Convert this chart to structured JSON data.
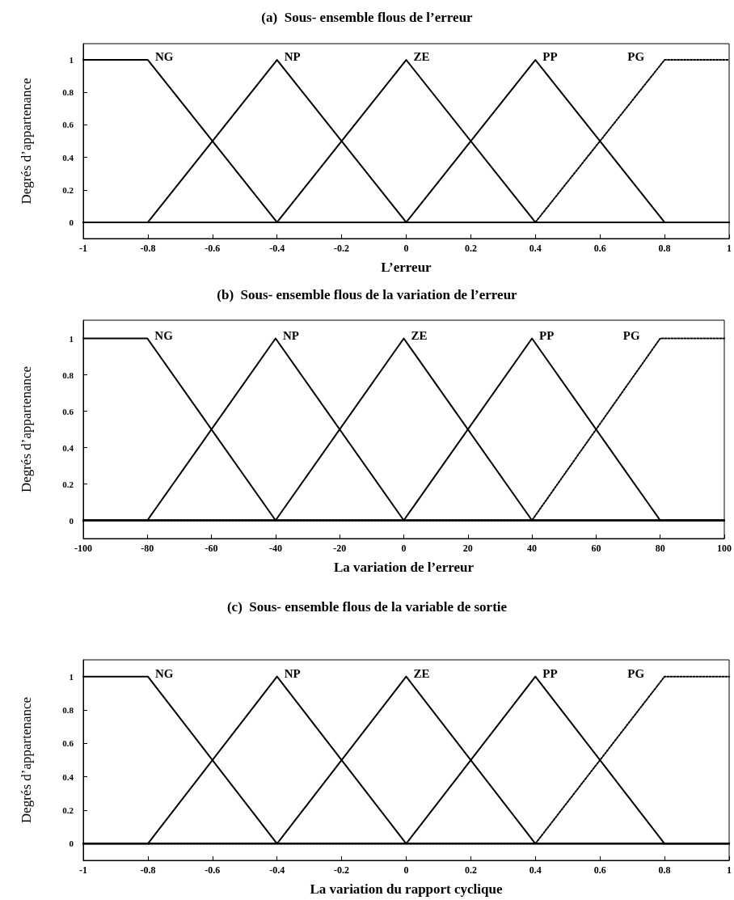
{
  "chart_data": [
    {
      "type": "line",
      "title": "(a)  Sous- ensemble flous de l’erreur",
      "xlabel": "L’erreur",
      "ylabel": "Degrés d’appartenance",
      "xlim": [
        -1,
        1
      ],
      "xticks": [
        -1,
        -0.8,
        -0.6,
        -0.4,
        -0.2,
        0,
        0.2,
        0.4,
        0.6,
        0.8,
        1
      ],
      "ylim": [
        -0.1,
        1.1
      ],
      "yticks": [
        0,
        0.2,
        0.4,
        0.6,
        0.8,
        1
      ],
      "grid": false,
      "legend": false,
      "marker": "none",
      "series": [
        {
          "name": "NG",
          "color": "#000000",
          "line_style": "solid",
          "x": [
            -1,
            -0.8,
            -0.4,
            1
          ],
          "values": [
            1,
            1,
            0,
            0
          ]
        },
        {
          "name": "NP",
          "color": "#000000",
          "line_style": "solid",
          "x": [
            -1,
            -0.8,
            -0.4,
            0,
            1
          ],
          "values": [
            0,
            0,
            1,
            0,
            0
          ]
        },
        {
          "name": "ZE",
          "color": "#000000",
          "line_style": "solid",
          "x": [
            -1,
            -0.4,
            0,
            0.4,
            1
          ],
          "values": [
            0,
            0,
            1,
            0,
            0
          ]
        },
        {
          "name": "PP",
          "color": "#000000",
          "line_style": "solid",
          "x": [
            -1,
            0,
            0.4,
            0.8,
            1
          ],
          "values": [
            0,
            0,
            1,
            0,
            0
          ]
        },
        {
          "name": "PG",
          "color": "#000000",
          "line_style": "dotted",
          "x": [
            -1,
            0.4,
            0.8,
            1
          ],
          "values": [
            0,
            0,
            1,
            1
          ]
        }
      ]
    },
    {
      "type": "line",
      "title": "(b)  Sous- ensemble flous de la variation de l’erreur",
      "xlabel": "La variation de l’erreur",
      "ylabel": "Degrés d’appartenance",
      "xlim": [
        -100,
        100
      ],
      "xticks": [
        -100,
        -80,
        -60,
        -40,
        -20,
        0,
        20,
        40,
        60,
        80,
        100
      ],
      "ylim": [
        -0.1,
        1.1
      ],
      "yticks": [
        0,
        0.2,
        0.4,
        0.6,
        0.8,
        1
      ],
      "grid": false,
      "legend": false,
      "marker": "none",
      "series": [
        {
          "name": "NG",
          "color": "#000000",
          "line_style": "solid",
          "x": [
            -100,
            -80,
            -40,
            100
          ],
          "values": [
            1,
            1,
            0,
            0
          ]
        },
        {
          "name": "NP",
          "color": "#000000",
          "line_style": "solid",
          "x": [
            -100,
            -80,
            -40,
            0,
            100
          ],
          "values": [
            0,
            0,
            1,
            0,
            0
          ]
        },
        {
          "name": "ZE",
          "color": "#000000",
          "line_style": "solid",
          "x": [
            -100,
            -40,
            0,
            40,
            100
          ],
          "values": [
            0,
            0,
            1,
            0,
            0
          ]
        },
        {
          "name": "PP",
          "color": "#000000",
          "line_style": "solid",
          "x": [
            -100,
            0,
            40,
            80,
            100
          ],
          "values": [
            0,
            0,
            1,
            0,
            0
          ]
        },
        {
          "name": "PG",
          "color": "#000000",
          "line_style": "dotted",
          "x": [
            -100,
            40,
            80,
            100
          ],
          "values": [
            0,
            0,
            1,
            1
          ]
        }
      ]
    },
    {
      "type": "line",
      "title": "(c)  Sous- ensemble flous de la variable de sortie",
      "xlabel": "La variation du rapport cyclique",
      "ylabel": "Degrés d’appartenance",
      "xlim": [
        -1,
        1
      ],
      "xticks": [
        -1,
        -0.8,
        -0.6,
        -0.4,
        -0.2,
        0,
        0.2,
        0.4,
        0.6,
        0.8,
        1
      ],
      "ylim": [
        -0.1,
        1.1
      ],
      "yticks": [
        0,
        0.2,
        0.4,
        0.6,
        0.8,
        1
      ],
      "grid": false,
      "legend": false,
      "marker": "none",
      "series": [
        {
          "name": "NG",
          "color": "#000000",
          "line_style": "solid",
          "x": [
            -1,
            -0.8,
            -0.4,
            1
          ],
          "values": [
            1,
            1,
            0,
            0
          ]
        },
        {
          "name": "NP",
          "color": "#000000",
          "line_style": "solid",
          "x": [
            -1,
            -0.8,
            -0.4,
            0,
            1
          ],
          "values": [
            0,
            0,
            1,
            0,
            0
          ]
        },
        {
          "name": "ZE",
          "color": "#000000",
          "line_style": "solid",
          "x": [
            -1,
            -0.4,
            0,
            0.4,
            1
          ],
          "values": [
            0,
            0,
            1,
            0,
            0
          ]
        },
        {
          "name": "PP",
          "color": "#000000",
          "line_style": "solid",
          "x": [
            -1,
            0,
            0.4,
            0.8,
            1
          ],
          "values": [
            0,
            0,
            1,
            0,
            0
          ]
        },
        {
          "name": "PG",
          "color": "#000000",
          "line_style": "dotted",
          "x": [
            -1,
            0.4,
            0.8,
            1
          ],
          "values": [
            0,
            0,
            1,
            1
          ]
        }
      ]
    }
  ]
}
